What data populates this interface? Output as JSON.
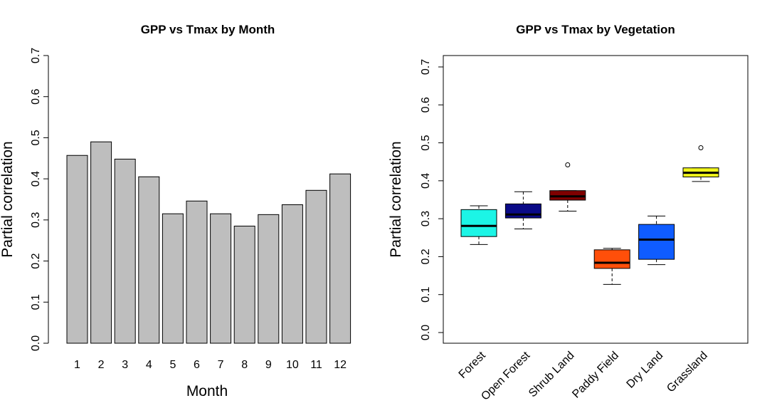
{
  "chart_data": [
    {
      "type": "bar",
      "title": "GPP vs Tmax by Month",
      "xlabel": "Month",
      "ylabel": "Partial correlation",
      "ylim": [
        0,
        0.7
      ],
      "yticks": [
        "0.0",
        "0.1",
        "0.2",
        "0.3",
        "0.4",
        "0.5",
        "0.6",
        "0.7"
      ],
      "categories": [
        "1",
        "2",
        "3",
        "4",
        "5",
        "6",
        "7",
        "8",
        "9",
        "10",
        "11",
        "12"
      ],
      "values": [
        0.457,
        0.49,
        0.448,
        0.405,
        0.315,
        0.346,
        0.315,
        0.285,
        0.313,
        0.337,
        0.372,
        0.412
      ],
      "bar_color": "#bebebe",
      "grid": false
    },
    {
      "type": "box",
      "title": "GPP vs Tmax by Vegetation",
      "xlabel": "",
      "ylabel": "Partial correlation",
      "ylim": [
        -0.025,
        0.73
      ],
      "yticks": [
        "0.0",
        "0.1",
        "0.2",
        "0.3",
        "0.4",
        "0.5",
        "0.6",
        "0.7"
      ],
      "categories": [
        "Forest",
        "Open Forest",
        "Shrub Land",
        "Paddy Field",
        "Dry Land",
        "Grassland"
      ],
      "boxes": [
        {
          "min": 0.232,
          "q1": 0.253,
          "median": 0.281,
          "q3": 0.324,
          "max": 0.334,
          "outliers": [],
          "color": "#1cf5e6"
        },
        {
          "min": 0.273,
          "q1": 0.302,
          "median": 0.311,
          "q3": 0.339,
          "max": 0.371,
          "outliers": [],
          "color": "#0a0a87"
        },
        {
          "min": 0.32,
          "q1": 0.349,
          "median": 0.359,
          "q3": 0.374,
          "max": 0.374,
          "outliers": [
            0.442
          ],
          "color": "#800000"
        },
        {
          "min": 0.127,
          "q1": 0.169,
          "median": 0.184,
          "q3": 0.218,
          "max": 0.222,
          "outliers": [],
          "color": "#ff4f0a"
        },
        {
          "min": 0.179,
          "q1": 0.193,
          "median": 0.245,
          "q3": 0.285,
          "max": 0.307,
          "outliers": [],
          "color": "#0f5cff"
        },
        {
          "min": 0.398,
          "q1": 0.41,
          "median": 0.421,
          "q3": 0.434,
          "max": 0.434,
          "outliers": [
            0.487
          ],
          "color": "#f0f51c"
        }
      ],
      "grid": false
    }
  ]
}
